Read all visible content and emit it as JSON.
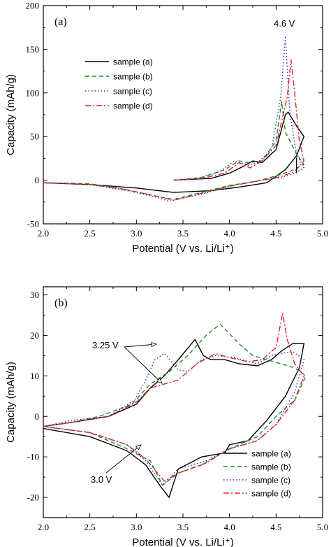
{
  "chart_data": [
    {
      "type": "line",
      "panel_label": "(a)",
      "xlabel": "Potential (V vs. Li/Li⁺)",
      "ylabel": "Capacity (mAh/g)",
      "xlim": [
        2.0,
        5.0
      ],
      "ylim": [
        -50,
        200
      ],
      "xticks": [
        "2.0",
        "2.5",
        "3.0",
        "3.5",
        "4.0",
        "4.5",
        "5.0"
      ],
      "yticks": [
        "-50",
        "0",
        "50",
        "100",
        "150",
        "200"
      ],
      "legend_position": "middle-left",
      "annotations": [
        {
          "text": "4.6 V",
          "x": 4.6,
          "y": 180
        }
      ],
      "series": [
        {
          "name": "sample (a)",
          "color": "#000000",
          "dash": "solid",
          "points": [
            [
              2.0,
              -3
            ],
            [
              2.5,
              -5
            ],
            [
              3.0,
              -9
            ],
            [
              3.4,
              -14
            ],
            [
              3.8,
              -12
            ],
            [
              4.1,
              -8
            ],
            [
              4.4,
              -3
            ],
            [
              4.6,
              12
            ],
            [
              4.72,
              28
            ],
            [
              4.78,
              45
            ],
            [
              4.8,
              50
            ],
            [
              4.72,
              62
            ],
            [
              4.63,
              78
            ],
            [
              4.6,
              75
            ],
            [
              4.5,
              35
            ],
            [
              4.35,
              20
            ],
            [
              4.25,
              22
            ],
            [
              4.15,
              16
            ],
            [
              4.0,
              8
            ],
            [
              3.8,
              2
            ],
            [
              3.4,
              0
            ]
          ]
        },
        {
          "name": "sample (b)",
          "color": "#1a8a1a",
          "dash": "6,4",
          "points": [
            [
              2.0,
              -3
            ],
            [
              2.5,
              -4
            ],
            [
              2.9,
              -11
            ],
            [
              3.2,
              -18
            ],
            [
              3.4,
              -22
            ],
            [
              3.7,
              -14
            ],
            [
              4.0,
              -6
            ],
            [
              4.3,
              -1
            ],
            [
              4.5,
              5
            ],
            [
              4.65,
              10
            ],
            [
              4.8,
              18
            ],
            [
              4.72,
              30
            ],
            [
              4.6,
              55
            ],
            [
              4.56,
              90
            ],
            [
              4.5,
              45
            ],
            [
              4.35,
              22
            ],
            [
              4.2,
              20
            ],
            [
              4.1,
              22
            ],
            [
              3.95,
              12
            ],
            [
              3.7,
              3
            ],
            [
              3.4,
              0
            ]
          ]
        },
        {
          "name": "sample (c)",
          "color": "#1f2fbf",
          "dash": "1.5,3",
          "points": [
            [
              2.0,
              -3
            ],
            [
              2.5,
              -5
            ],
            [
              2.9,
              -12
            ],
            [
              3.2,
              -19
            ],
            [
              3.35,
              -24
            ],
            [
              3.7,
              -16
            ],
            [
              4.0,
              -7
            ],
            [
              4.3,
              -1
            ],
            [
              4.55,
              3
            ],
            [
              4.7,
              8
            ],
            [
              4.8,
              14
            ],
            [
              4.72,
              30
            ],
            [
              4.65,
              75
            ],
            [
              4.6,
              165
            ],
            [
              4.55,
              95
            ],
            [
              4.45,
              35
            ],
            [
              4.3,
              20
            ],
            [
              4.2,
              17
            ],
            [
              4.05,
              22
            ],
            [
              3.9,
              10
            ],
            [
              3.65,
              2
            ],
            [
              3.4,
              0
            ]
          ]
        },
        {
          "name": "sample (d)",
          "color": "#e0202a",
          "dash": "8,3,2,3",
          "points": [
            [
              2.0,
              -3
            ],
            [
              2.5,
              -5
            ],
            [
              2.9,
              -11
            ],
            [
              3.2,
              -18
            ],
            [
              3.4,
              -23
            ],
            [
              3.7,
              -15
            ],
            [
              4.0,
              -7
            ],
            [
              4.3,
              -1
            ],
            [
              4.55,
              4
            ],
            [
              4.7,
              10
            ],
            [
              4.8,
              22
            ],
            [
              4.75,
              45
            ],
            [
              4.7,
              100
            ],
            [
              4.66,
              138
            ],
            [
              4.62,
              95
            ],
            [
              4.5,
              40
            ],
            [
              4.35,
              22
            ],
            [
              4.22,
              14
            ],
            [
              4.1,
              20
            ],
            [
              3.95,
              8
            ],
            [
              3.7,
              2
            ],
            [
              3.4,
              0
            ]
          ]
        }
      ]
    },
    {
      "type": "line",
      "panel_label": "(b)",
      "xlabel": "Potential (V vs. Li/Li⁺)",
      "ylabel": "Capacity (mAh/g)",
      "xlim": [
        2.0,
        5.0
      ],
      "ylim": [
        -25,
        32
      ],
      "xticks": [
        "2.0",
        "2.5",
        "3.0",
        "3.5",
        "4.0",
        "4.5",
        "5.0"
      ],
      "yticks": [
        "-20",
        "-10",
        "0",
        "10",
        "20",
        "30"
      ],
      "legend_position": "bottom-right",
      "annotations": [
        {
          "text": "3.25 V",
          "x": 2.9,
          "y": 19.5
        },
        {
          "text": "3.0 V",
          "x": 2.58,
          "y": -16.5
        }
      ],
      "series": [
        {
          "name": "sample (a)",
          "color": "#000000",
          "dash": "solid",
          "points": [
            [
              2.0,
              -3
            ],
            [
              2.5,
              -5
            ],
            [
              2.9,
              -8.5
            ],
            [
              3.1,
              -12
            ],
            [
              3.25,
              -17
            ],
            [
              3.35,
              -20
            ],
            [
              3.45,
              -13
            ],
            [
              3.7,
              -10
            ],
            [
              3.95,
              -9
            ],
            [
              4.0,
              -7
            ],
            [
              4.2,
              -6
            ],
            [
              4.4,
              -1
            ],
            [
              4.6,
              5
            ],
            [
              4.75,
              12
            ],
            [
              4.8,
              18
            ],
            [
              4.68,
              18
            ],
            [
              4.55,
              16
            ],
            [
              4.45,
              14
            ],
            [
              4.3,
              12.5
            ],
            [
              4.1,
              13
            ],
            [
              3.95,
              14
            ],
            [
              3.8,
              14
            ],
            [
              3.72,
              15
            ],
            [
              3.63,
              19
            ],
            [
              3.45,
              14
            ],
            [
              3.3,
              10
            ],
            [
              3.15,
              7
            ],
            [
              3.0,
              3
            ],
            [
              2.7,
              0
            ],
            [
              2.3,
              -1.5
            ],
            [
              2.0,
              -2.5
            ]
          ]
        },
        {
          "name": "sample (b)",
          "color": "#1a8a1a",
          "dash": "6,4",
          "points": [
            [
              2.0,
              -2.5
            ],
            [
              2.5,
              -4
            ],
            [
              2.9,
              -8
            ],
            [
              3.15,
              -11
            ],
            [
              3.28,
              -17
            ],
            [
              3.45,
              -14
            ],
            [
              3.7,
              -12
            ],
            [
              4.0,
              -8
            ],
            [
              4.3,
              -5
            ],
            [
              4.5,
              0
            ],
            [
              4.7,
              4
            ],
            [
              4.82,
              10
            ],
            [
              4.7,
              12
            ],
            [
              4.55,
              13
            ],
            [
              4.4,
              14
            ],
            [
              4.25,
              15
            ],
            [
              4.1,
              18
            ],
            [
              3.9,
              22.8
            ],
            [
              3.75,
              20
            ],
            [
              3.55,
              15
            ],
            [
              3.35,
              11
            ],
            [
              3.15,
              8
            ],
            [
              2.95,
              3
            ],
            [
              2.6,
              0
            ],
            [
              2.3,
              -1.5
            ],
            [
              2.0,
              -2.5
            ]
          ]
        },
        {
          "name": "sample (c)",
          "color": "#1f2fbf",
          "dash": "1.5,3",
          "points": [
            [
              2.0,
              -2.5
            ],
            [
              2.5,
              -4
            ],
            [
              2.9,
              -7
            ],
            [
              3.1,
              -11
            ],
            [
              3.28,
              -17
            ],
            [
              3.45,
              -13
            ],
            [
              3.75,
              -11
            ],
            [
              4.0,
              -8
            ],
            [
              4.3,
              -6
            ],
            [
              4.5,
              -2
            ],
            [
              4.7,
              6
            ],
            [
              4.8,
              14
            ],
            [
              4.68,
              16
            ],
            [
              4.55,
              15.5
            ],
            [
              4.45,
              15
            ],
            [
              4.3,
              13
            ],
            [
              4.05,
              14.5
            ],
            [
              3.85,
              15
            ],
            [
              3.7,
              14
            ],
            [
              3.55,
              11
            ],
            [
              3.45,
              11.5
            ],
            [
              3.3,
              15.5
            ],
            [
              3.2,
              14
            ],
            [
              3.1,
              9
            ],
            [
              2.98,
              4
            ],
            [
              2.7,
              0
            ],
            [
              2.3,
              -1
            ],
            [
              2.0,
              -2.5
            ]
          ]
        },
        {
          "name": "sample (d)",
          "color": "#e0202a",
          "dash": "8,3,2,3",
          "points": [
            [
              2.0,
              -2.5
            ],
            [
              2.5,
              -4
            ],
            [
              2.9,
              -7
            ],
            [
              3.1,
              -10.5
            ],
            [
              3.3,
              -16
            ],
            [
              3.45,
              -14
            ],
            [
              3.75,
              -11.5
            ],
            [
              4.0,
              -8
            ],
            [
              4.3,
              -6
            ],
            [
              4.5,
              -2
            ],
            [
              4.7,
              4
            ],
            [
              4.8,
              10
            ],
            [
              4.7,
              13
            ],
            [
              4.62,
              19
            ],
            [
              4.57,
              25.5
            ],
            [
              4.5,
              17
            ],
            [
              4.35,
              14
            ],
            [
              4.2,
              13.5
            ],
            [
              4.0,
              14.5
            ],
            [
              3.85,
              15.5
            ],
            [
              3.65,
              13
            ],
            [
              3.45,
              9
            ],
            [
              3.3,
              8
            ],
            [
              3.15,
              7
            ],
            [
              3.0,
              3.5
            ],
            [
              2.7,
              0
            ],
            [
              2.3,
              -1.5
            ],
            [
              2.0,
              -2.5
            ]
          ]
        }
      ]
    }
  ]
}
